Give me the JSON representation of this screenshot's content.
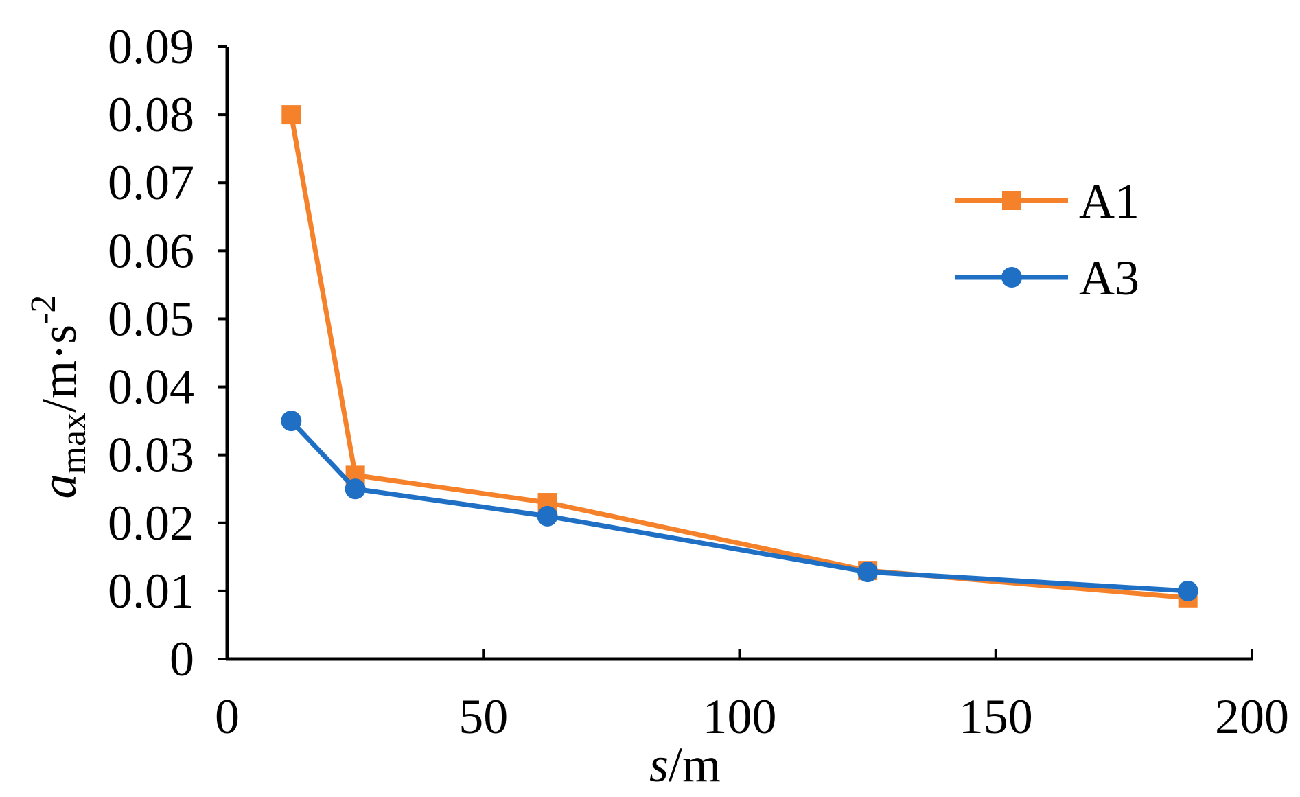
{
  "chart_data": {
    "type": "line",
    "title": "",
    "xlabel": {
      "var": "s",
      "unit": "/m"
    },
    "ylabel": {
      "var": "a",
      "sub": "max",
      "unit": "/m·s",
      "sup": "-2"
    },
    "xlim": [
      0,
      200
    ],
    "ylim": [
      0,
      0.09
    ],
    "xticks": [
      0,
      50,
      100,
      150,
      200
    ],
    "yticks": [
      0,
      0.01,
      0.02,
      0.03,
      0.04,
      0.05,
      0.06,
      0.07,
      0.08,
      0.09
    ],
    "xtick_labels": [
      "0",
      "50",
      "100",
      "150",
      "200"
    ],
    "ytick_labels": [
      "0",
      "0.01",
      "0.02",
      "0.03",
      "0.04",
      "0.05",
      "0.06",
      "0.07",
      "0.08",
      "0.09"
    ],
    "grid": false,
    "legend_position": "top-right",
    "x": [
      12.5,
      25,
      62.5,
      125,
      187.5
    ],
    "series": [
      {
        "name": "A1",
        "color": "#F5822A",
        "marker": "square",
        "values": [
          0.08,
          0.027,
          0.023,
          0.013,
          0.009
        ]
      },
      {
        "name": "A3",
        "color": "#1F6FC4",
        "marker": "circle",
        "values": [
          0.035,
          0.025,
          0.021,
          0.0128,
          0.01
        ]
      }
    ]
  }
}
